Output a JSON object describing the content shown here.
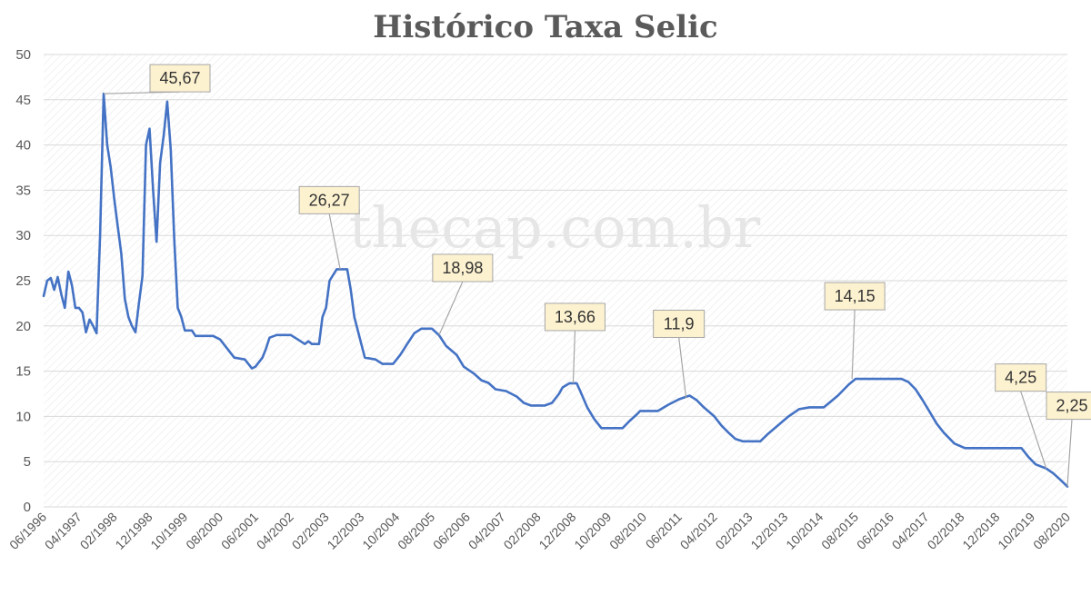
{
  "chart_data": {
    "type": "line",
    "title": "Histórico Taxa Selic",
    "watermark": "thecap.com.br",
    "line_color": "#4472c4",
    "callout_fill": "#fdf2d0",
    "ylim": [
      0,
      50
    ],
    "y_ticks": [
      "0",
      "5",
      "10",
      "15",
      "20",
      "25",
      "30",
      "35",
      "40",
      "45",
      "50"
    ],
    "x_range": [
      "06/1996",
      "08/2020"
    ],
    "x_tick_labels": [
      "06/1996",
      "04/1997",
      "02/1998",
      "12/1998",
      "10/1999",
      "08/2000",
      "06/2001",
      "04/2002",
      "02/2003",
      "12/2003",
      "10/2004",
      "08/2005",
      "06/2006",
      "04/2007",
      "02/2008",
      "12/2008",
      "10/2009",
      "08/2010",
      "06/2011",
      "04/2012",
      "02/2013",
      "12/2013",
      "10/2014",
      "08/2015",
      "06/2016",
      "04/2017",
      "02/2018",
      "12/2018",
      "10/2019",
      "08/2020"
    ],
    "grid": true,
    "series": [
      {
        "points": [
          [
            "1996-06",
            23.3
          ],
          [
            "1996-07",
            25.0
          ],
          [
            "1996-08",
            25.3
          ],
          [
            "1996-09",
            24.0
          ],
          [
            "1996-10",
            25.4
          ],
          [
            "1996-11",
            23.5
          ],
          [
            "1996-12",
            22.0
          ],
          [
            "1997-01",
            26.0
          ],
          [
            "1997-02",
            24.5
          ],
          [
            "1997-03",
            22.0
          ],
          [
            "1997-04",
            22.0
          ],
          [
            "1997-05",
            21.5
          ],
          [
            "1997-06",
            19.3
          ],
          [
            "1997-07",
            20.7
          ],
          [
            "1997-08",
            20.0
          ],
          [
            "1997-09",
            19.2
          ],
          [
            "1997-10",
            30.0
          ],
          [
            "1997-11",
            45.67
          ],
          [
            "1997-12",
            40.0
          ],
          [
            "1998-01",
            37.5
          ],
          [
            "1998-02",
            34.0
          ],
          [
            "1998-03",
            31.0
          ],
          [
            "1998-04",
            28.0
          ],
          [
            "1998-05",
            23.0
          ],
          [
            "1998-06",
            21.0
          ],
          [
            "1998-07",
            20.0
          ],
          [
            "1998-08",
            19.3
          ],
          [
            "1998-09",
            22.5
          ],
          [
            "1998-10",
            25.5
          ],
          [
            "1998-11",
            40.0
          ],
          [
            "1998-12",
            41.8
          ],
          [
            "1999-01",
            35.0
          ],
          [
            "1999-02",
            29.3
          ],
          [
            "1999-03",
            38.0
          ],
          [
            "1999-04",
            41.0
          ],
          [
            "1999-05",
            44.8
          ],
          [
            "1999-06",
            39.5
          ],
          [
            "1999-07",
            29.5
          ],
          [
            "1999-08",
            22.0
          ],
          [
            "1999-09",
            21.0
          ],
          [
            "1999-10",
            19.5
          ],
          [
            "1999-12",
            19.5
          ],
          [
            "2000-01",
            18.9
          ],
          [
            "2000-06",
            18.9
          ],
          [
            "2000-08",
            18.5
          ],
          [
            "2000-10",
            17.5
          ],
          [
            "2000-12",
            16.5
          ],
          [
            "2001-03",
            16.3
          ],
          [
            "2001-05",
            15.3
          ],
          [
            "2001-06",
            15.5
          ],
          [
            "2001-08",
            16.5
          ],
          [
            "2001-09",
            17.5
          ],
          [
            "2001-10",
            18.7
          ],
          [
            "2001-12",
            19.0
          ],
          [
            "2002-04",
            19.0
          ],
          [
            "2002-06",
            18.5
          ],
          [
            "2002-08",
            18.0
          ],
          [
            "2002-09",
            18.3
          ],
          [
            "2002-10",
            18.0
          ],
          [
            "2002-12",
            18.0
          ],
          [
            "2003-01",
            21.0
          ],
          [
            "2003-02",
            22.0
          ],
          [
            "2003-03",
            25.0
          ],
          [
            "2003-05",
            26.27
          ],
          [
            "2003-08",
            26.27
          ],
          [
            "2003-09",
            24.0
          ],
          [
            "2003-10",
            21.0
          ],
          [
            "2003-12",
            18.0
          ],
          [
            "2004-01",
            16.5
          ],
          [
            "2004-04",
            16.3
          ],
          [
            "2004-06",
            15.8
          ],
          [
            "2004-09",
            15.8
          ],
          [
            "2004-11",
            16.8
          ],
          [
            "2005-01",
            18.0
          ],
          [
            "2005-03",
            19.2
          ],
          [
            "2005-05",
            19.7
          ],
          [
            "2005-08",
            19.7
          ],
          [
            "2005-10",
            18.98
          ],
          [
            "2005-12",
            17.8
          ],
          [
            "2006-03",
            16.8
          ],
          [
            "2006-05",
            15.5
          ],
          [
            "2006-08",
            14.7
          ],
          [
            "2006-10",
            14.0
          ],
          [
            "2006-12",
            13.7
          ],
          [
            "2007-02",
            13.0
          ],
          [
            "2007-05",
            12.8
          ],
          [
            "2007-08",
            12.2
          ],
          [
            "2007-10",
            11.5
          ],
          [
            "2007-12",
            11.2
          ],
          [
            "2008-04",
            11.2
          ],
          [
            "2008-06",
            11.5
          ],
          [
            "2008-08",
            12.5
          ],
          [
            "2008-09",
            13.2
          ],
          [
            "2008-11",
            13.66
          ],
          [
            "2009-01",
            13.66
          ],
          [
            "2009-02",
            12.8
          ],
          [
            "2009-04",
            11.0
          ],
          [
            "2009-06",
            9.7
          ],
          [
            "2009-08",
            8.7
          ],
          [
            "2010-02",
            8.7
          ],
          [
            "2010-04",
            9.5
          ],
          [
            "2010-06",
            10.2
          ],
          [
            "2010-07",
            10.6
          ],
          [
            "2010-12",
            10.6
          ],
          [
            "2011-03",
            11.3
          ],
          [
            "2011-06",
            11.9
          ],
          [
            "2011-09",
            12.3
          ],
          [
            "2011-11",
            11.8
          ],
          [
            "2012-01",
            11.0
          ],
          [
            "2012-04",
            10.0
          ],
          [
            "2012-06",
            9.0
          ],
          [
            "2012-08",
            8.2
          ],
          [
            "2012-10",
            7.5
          ],
          [
            "2012-12",
            7.25
          ],
          [
            "2013-05",
            7.25
          ],
          [
            "2013-07",
            8.0
          ],
          [
            "2013-10",
            9.0
          ],
          [
            "2014-01",
            10.0
          ],
          [
            "2014-04",
            10.8
          ],
          [
            "2014-07",
            11.0
          ],
          [
            "2014-11",
            11.0
          ],
          [
            "2015-03",
            12.3
          ],
          [
            "2015-06",
            13.5
          ],
          [
            "2015-08",
            14.15
          ],
          [
            "2016-09",
            14.15
          ],
          [
            "2016-11",
            13.8
          ],
          [
            "2017-01",
            13.0
          ],
          [
            "2017-03",
            11.8
          ],
          [
            "2017-05",
            10.5
          ],
          [
            "2017-07",
            9.2
          ],
          [
            "2017-09",
            8.2
          ],
          [
            "2017-12",
            7.0
          ],
          [
            "2018-03",
            6.5
          ],
          [
            "2019-07",
            6.5
          ],
          [
            "2019-09",
            5.5
          ],
          [
            "2019-11",
            4.7
          ],
          [
            "2020-02",
            4.25
          ],
          [
            "2020-04",
            3.7
          ],
          [
            "2020-06",
            3.0
          ],
          [
            "2020-08",
            2.25
          ]
        ]
      }
    ],
    "annotations": [
      {
        "text": "45,67",
        "x": "1997-11",
        "y": 45.67
      },
      {
        "text": "26,27",
        "x": "2003-06",
        "y": 26.27
      },
      {
        "text": "18,98",
        "x": "2005-10",
        "y": 18.98
      },
      {
        "text": "13,66",
        "x": "2008-12",
        "y": 13.66
      },
      {
        "text": "11,9",
        "x": "2011-08",
        "y": 12.0
      },
      {
        "text": "14,15",
        "x": "2015-07",
        "y": 14.15
      },
      {
        "text": "4,25",
        "x": "2020-02",
        "y": 4.25
      },
      {
        "text": "2,25",
        "x": "2020-08",
        "y": 2.25
      }
    ]
  }
}
